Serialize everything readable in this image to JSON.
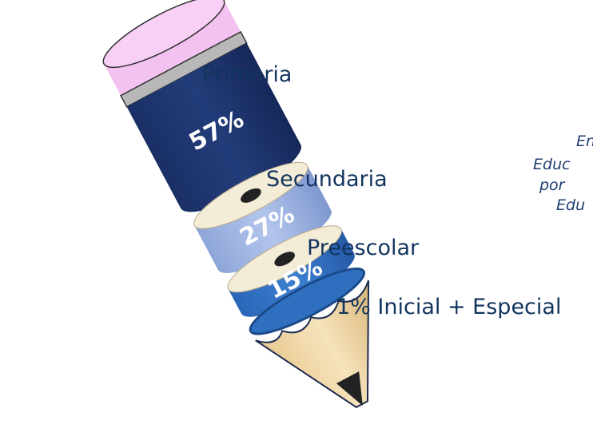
{
  "segments": [
    {
      "label": "Primaria",
      "value": "57%"
    },
    {
      "label": "Secundaria",
      "value": "27%"
    },
    {
      "label": "Preescolar",
      "value": "15%"
    }
  ],
  "remainder_label": "1% Inicial + Especial",
  "side_text": [
    "En",
    "Educ",
    "por",
    "Edu"
  ]
}
